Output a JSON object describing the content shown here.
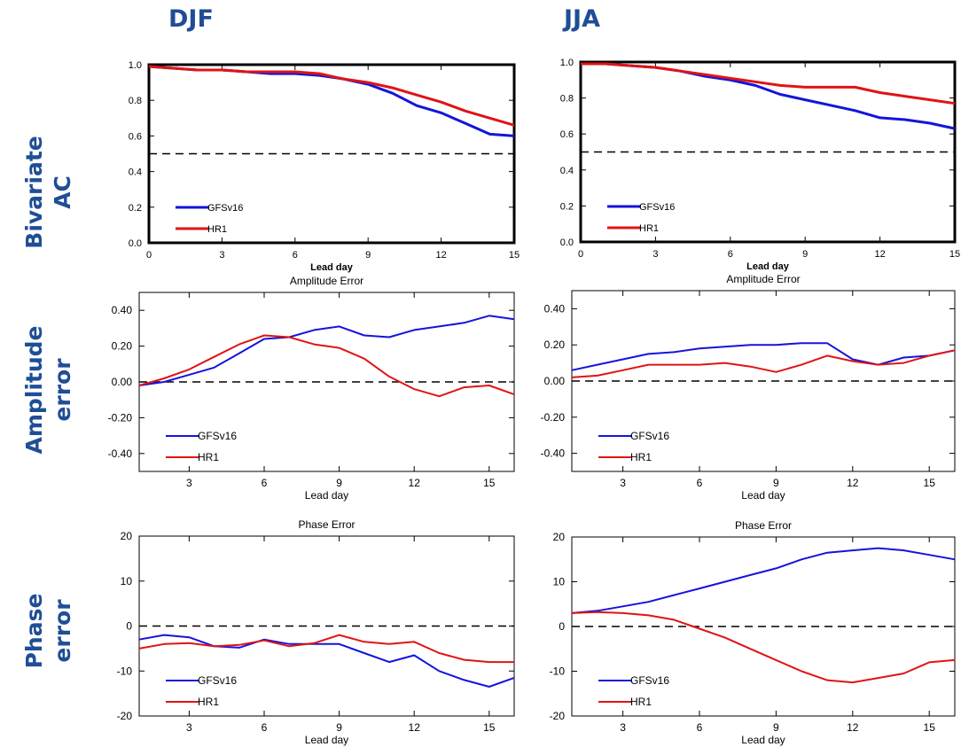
{
  "column_headers": {
    "left": "DJF",
    "right": "JJA"
  },
  "row_headers": {
    "ac_line1": "Bivariate",
    "ac_line2": "AC",
    "amp_line1": "Amplitude",
    "amp_line2": "error",
    "phase_line1": "Phase",
    "phase_line2": "error"
  },
  "colors": {
    "header": "#1f4e96",
    "gfs": "#1414dc",
    "hr1": "#e01414",
    "axis": "#000000"
  },
  "chart_data": [
    {
      "id": "djf_ac",
      "type": "line",
      "title": "",
      "xlabel": "Lead day",
      "ylabel": "",
      "xlim": [
        0,
        15
      ],
      "ylim": [
        0,
        1
      ],
      "xticks": [
        0,
        3,
        6,
        9,
        12,
        15
      ],
      "xtick_labels": [
        "0",
        "3",
        "6",
        "9",
        "12",
        "15"
      ],
      "yticks": [
        0,
        0.2,
        0.4,
        0.6,
        0.8,
        1.0
      ],
      "ytick_labels": [
        "0.0",
        "0.2",
        "0.4",
        "0.6",
        "0.8",
        "1.0"
      ],
      "reference_line": 0.5,
      "legend_position": "bottom-left",
      "x": [
        0,
        1,
        2,
        3,
        4,
        5,
        6,
        7,
        8,
        9,
        10,
        11,
        12,
        13,
        14,
        15
      ],
      "series": [
        {
          "name": "GFSv16",
          "color": "#1414dc",
          "values": [
            0.99,
            0.98,
            0.97,
            0.97,
            0.96,
            0.95,
            0.95,
            0.94,
            0.92,
            0.89,
            0.84,
            0.77,
            0.73,
            0.67,
            0.61,
            0.6
          ]
        },
        {
          "name": "HR1",
          "color": "#e01414",
          "values": [
            0.99,
            0.98,
            0.97,
            0.97,
            0.96,
            0.96,
            0.96,
            0.95,
            0.92,
            0.9,
            0.87,
            0.83,
            0.79,
            0.74,
            0.7,
            0.66
          ]
        }
      ]
    },
    {
      "id": "jja_ac",
      "type": "line",
      "title": "",
      "xlabel": "Lead day",
      "ylabel": "",
      "xlim": [
        0,
        15
      ],
      "ylim": [
        0,
        1
      ],
      "xticks": [
        0,
        3,
        6,
        9,
        12,
        15
      ],
      "xtick_labels": [
        "0",
        "3",
        "6",
        "9",
        "12",
        "15"
      ],
      "yticks": [
        0,
        0.2,
        0.4,
        0.6,
        0.8,
        1.0
      ],
      "ytick_labels": [
        "0.0",
        "0.2",
        "0.4",
        "0.6",
        "0.8",
        "1.0"
      ],
      "reference_line": 0.5,
      "legend_position": "bottom-left",
      "x": [
        0,
        1,
        2,
        3,
        4,
        5,
        6,
        7,
        8,
        9,
        10,
        11,
        12,
        13,
        14,
        15
      ],
      "series": [
        {
          "name": "GFSv16",
          "color": "#1414dc",
          "values": [
            0.99,
            0.99,
            0.98,
            0.97,
            0.95,
            0.92,
            0.9,
            0.87,
            0.82,
            0.79,
            0.76,
            0.73,
            0.69,
            0.68,
            0.66,
            0.63
          ]
        },
        {
          "name": "HR1",
          "color": "#e01414",
          "values": [
            0.99,
            0.99,
            0.98,
            0.97,
            0.95,
            0.93,
            0.91,
            0.89,
            0.87,
            0.86,
            0.86,
            0.86,
            0.83,
            0.81,
            0.79,
            0.77
          ]
        }
      ]
    },
    {
      "id": "djf_amp",
      "type": "line",
      "title": "Amplitude Error",
      "xlabel": "Lead day",
      "ylabel": "",
      "xlim": [
        1,
        16
      ],
      "ylim": [
        -0.5,
        0.5
      ],
      "xticks": [
        3,
        6,
        9,
        12,
        15
      ],
      "xtick_labels": [
        "3",
        "6",
        "9",
        "12",
        "15"
      ],
      "yticks": [
        -0.4,
        -0.2,
        0,
        0.2,
        0.4
      ],
      "ytick_labels": [
        "-0.40",
        "-0.20",
        "0.00",
        "0.20",
        "0.40"
      ],
      "reference_line": 0,
      "legend_position": "bottom-left",
      "x": [
        1,
        2,
        3,
        4,
        5,
        6,
        7,
        8,
        9,
        10,
        11,
        12,
        13,
        14,
        15,
        16
      ],
      "series": [
        {
          "name": "GFSv16",
          "color": "#1414dc",
          "values": [
            -0.02,
            0.0,
            0.04,
            0.08,
            0.16,
            0.24,
            0.25,
            0.29,
            0.31,
            0.26,
            0.25,
            0.29,
            0.31,
            0.33,
            0.37,
            0.35
          ]
        },
        {
          "name": "HR1",
          "color": "#e01414",
          "values": [
            -0.02,
            0.02,
            0.07,
            0.14,
            0.21,
            0.26,
            0.25,
            0.21,
            0.19,
            0.13,
            0.03,
            -0.04,
            -0.08,
            -0.03,
            -0.02,
            -0.07
          ]
        }
      ]
    },
    {
      "id": "jja_amp",
      "type": "line",
      "title": "Amplitude Error",
      "xlabel": "Lead day",
      "ylabel": "",
      "xlim": [
        1,
        16
      ],
      "ylim": [
        -0.5,
        0.5
      ],
      "xticks": [
        3,
        6,
        9,
        12,
        15
      ],
      "xtick_labels": [
        "3",
        "6",
        "9",
        "12",
        "15"
      ],
      "yticks": [
        -0.4,
        -0.2,
        0,
        0.2,
        0.4
      ],
      "ytick_labels": [
        "-0.40",
        "-0.20",
        "0.00",
        "0.20",
        "0.40"
      ],
      "reference_line": 0,
      "legend_position": "bottom-left",
      "x": [
        1,
        2,
        3,
        4,
        5,
        6,
        7,
        8,
        9,
        10,
        11,
        12,
        13,
        14,
        15,
        16
      ],
      "series": [
        {
          "name": "GFSv16",
          "color": "#1414dc",
          "values": [
            0.06,
            0.09,
            0.12,
            0.15,
            0.16,
            0.18,
            0.19,
            0.2,
            0.2,
            0.21,
            0.21,
            0.12,
            0.09,
            0.13,
            0.14,
            0.17
          ]
        },
        {
          "name": "HR1",
          "color": "#e01414",
          "values": [
            0.02,
            0.03,
            0.06,
            0.09,
            0.09,
            0.09,
            0.1,
            0.08,
            0.05,
            0.09,
            0.14,
            0.11,
            0.09,
            0.1,
            0.14,
            0.17
          ]
        }
      ]
    },
    {
      "id": "djf_phase",
      "type": "line",
      "title": "Phase Error",
      "xlabel": "Lead day",
      "ylabel": "",
      "xlim": [
        1,
        16
      ],
      "ylim": [
        -20,
        20
      ],
      "xticks": [
        3,
        6,
        9,
        12,
        15
      ],
      "xtick_labels": [
        "3",
        "6",
        "9",
        "12",
        "15"
      ],
      "yticks": [
        -20,
        -10,
        0,
        10,
        20
      ],
      "ytick_labels": [
        "-20",
        "-10",
        "0",
        "10",
        "20"
      ],
      "reference_line": 0,
      "legend_position": "bottom-left",
      "x": [
        1,
        2,
        3,
        4,
        5,
        6,
        7,
        8,
        9,
        10,
        11,
        12,
        13,
        14,
        15,
        16
      ],
      "series": [
        {
          "name": "GFSv16",
          "color": "#1414dc",
          "values": [
            -3,
            -2,
            -2.5,
            -4.5,
            -4.8,
            -3,
            -4,
            -4,
            -4,
            -6,
            -8,
            -6.5,
            -10,
            -12,
            -13.5,
            -11.5
          ]
        },
        {
          "name": "HR1",
          "color": "#e01414",
          "values": [
            -5,
            -4,
            -3.8,
            -4.5,
            -4.2,
            -3.2,
            -4.5,
            -3.8,
            -2,
            -3.5,
            -4,
            -3.5,
            -6,
            -7.5,
            -8,
            -8
          ]
        }
      ]
    },
    {
      "id": "jja_phase",
      "type": "line",
      "title": "Phase Error",
      "xlabel": "Lead day",
      "ylabel": "",
      "xlim": [
        1,
        16
      ],
      "ylim": [
        -20,
        20
      ],
      "xticks": [
        3,
        6,
        9,
        12,
        15
      ],
      "xtick_labels": [
        "3",
        "6",
        "9",
        "12",
        "15"
      ],
      "yticks": [
        -20,
        -10,
        0,
        10,
        20
      ],
      "ytick_labels": [
        "-20",
        "-10",
        "0",
        "10",
        "20"
      ],
      "reference_line": 0,
      "legend_position": "bottom-left",
      "x": [
        1,
        2,
        3,
        4,
        5,
        6,
        7,
        8,
        9,
        10,
        11,
        12,
        13,
        14,
        15,
        16
      ],
      "series": [
        {
          "name": "GFSv16",
          "color": "#1414dc",
          "values": [
            3,
            3.5,
            4.5,
            5.5,
            7,
            8.5,
            10,
            11.5,
            13,
            15,
            16.5,
            17,
            17.5,
            17,
            16,
            15
          ]
        },
        {
          "name": "HR1",
          "color": "#e01414",
          "values": [
            3,
            3.2,
            3,
            2.5,
            1.5,
            -0.5,
            -2.5,
            -5,
            -7.5,
            -10,
            -12,
            -12.5,
            -11.5,
            -10.5,
            -8,
            -7.5
          ]
        }
      ]
    }
  ]
}
